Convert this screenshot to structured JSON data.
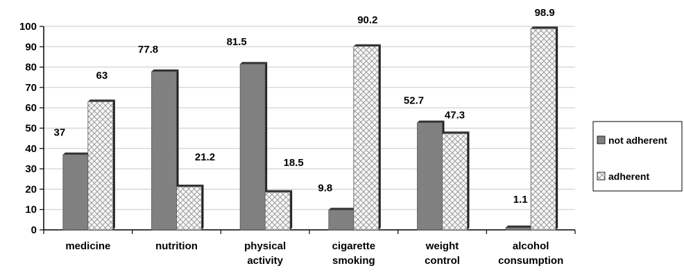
{
  "chart_data": {
    "type": "bar",
    "title": "",
    "xlabel": "",
    "ylabel": "",
    "ylim": [
      0,
      100
    ],
    "yticks": [
      0,
      10,
      20,
      30,
      40,
      50,
      60,
      70,
      80,
      90,
      100
    ],
    "grid": true,
    "legend_position": "right",
    "categories": [
      [
        "medicine"
      ],
      [
        "nutrition"
      ],
      [
        "physical",
        "activity"
      ],
      [
        "cigarette",
        "smoking"
      ],
      [
        "weight",
        "control"
      ],
      [
        "alcohol",
        "consumption"
      ]
    ],
    "series": [
      {
        "name": "not adherent",
        "values": [
          37,
          77.8,
          81.5,
          9.8,
          52.7,
          1.1
        ],
        "labels": [
          "37",
          "77.8",
          "81.5",
          "9.8",
          "52.7",
          "1.1"
        ],
        "color": "#808080",
        "pattern": "dots"
      },
      {
        "name": "adherent",
        "values": [
          63,
          21.2,
          18.5,
          90.2,
          47.3,
          98.9
        ],
        "labels": [
          "63",
          "21.2",
          "18.5",
          "90.2",
          "47.3",
          "98.9"
        ],
        "color": "#f4f4f4",
        "pattern": "crosshatch"
      }
    ]
  }
}
